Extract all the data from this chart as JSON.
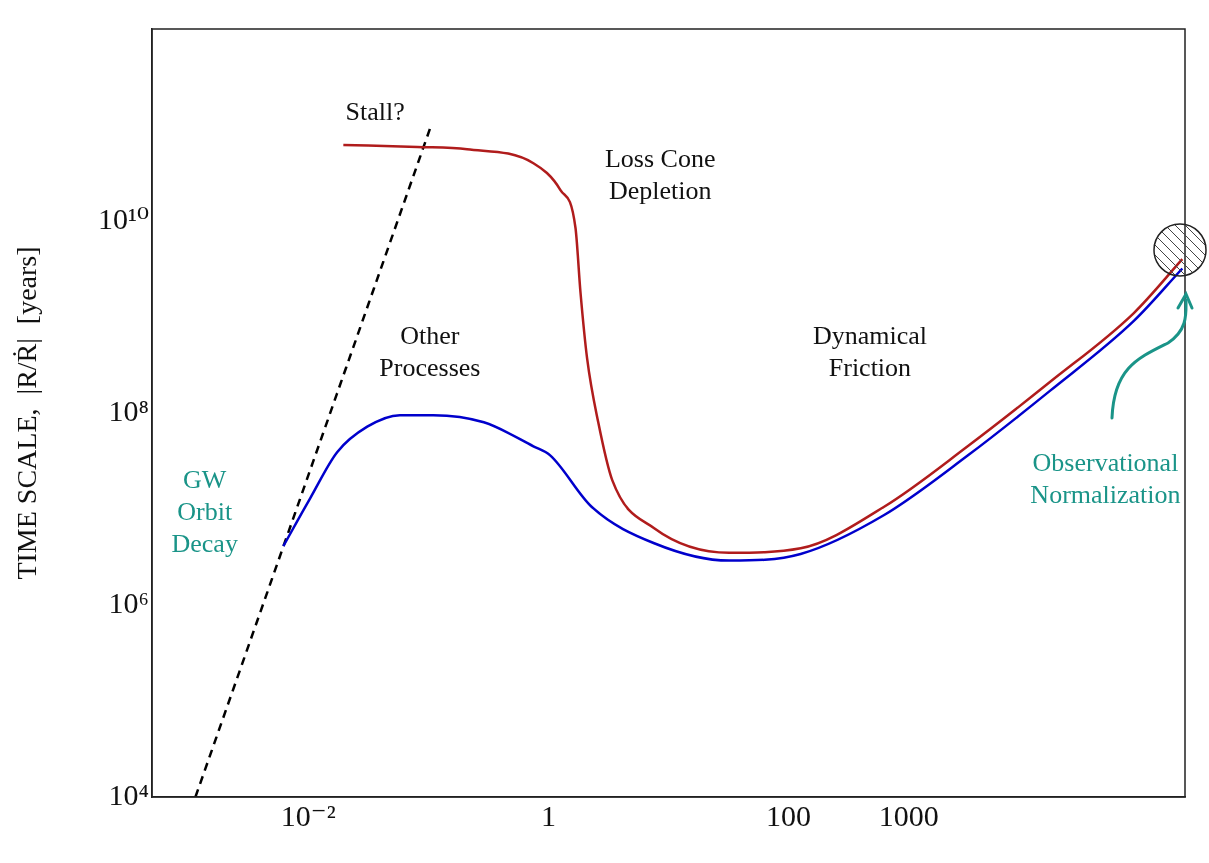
{
  "chart_data": {
    "type": "line",
    "ylabel": "TIME SCALE,  |R/Ṙ|  [years]",
    "log": "xy",
    "grid": false,
    "legend": false,
    "marker": "none",
    "xlim": [
      0.0005,
      200000
    ],
    "ylim": [
      10000,
      1000000000000
    ],
    "xticks": [
      {
        "value": 0.01,
        "label": "10⁻²"
      },
      1,
      100,
      1000
    ],
    "yticks": [
      {
        "value": 10000,
        "label": "10⁴"
      },
      {
        "value": 1000000,
        "label": "10⁶"
      },
      {
        "value": 100000000,
        "label": "10⁸"
      },
      {
        "value": 10000000000,
        "label": "10¹⁰"
      }
    ],
    "series": [
      {
        "color": "#b01c1c",
        "line_style": "solid",
        "x": [
          0.0196,
          0.081,
          0.21,
          0.75,
          1.26,
          1.68,
          1.85,
          2.1,
          2.6,
          3.4,
          7.6,
          32,
          126,
          620,
          3100,
          15000,
          75000,
          190000
        ],
        "values": [
          62000000000,
          59000000000,
          56000000000,
          40000000000,
          21000000000,
          8500000000,
          1800000000,
          370000000,
          80000000,
          20000000,
          6300000,
          3500000,
          3900000,
          10500000,
          45000000,
          210000000,
          1100000000,
          4000000000
        ]
      },
      {
        "color": "#0000cc",
        "line_style": "solid",
        "x": [
          0.0062,
          0.0104,
          0.0174,
          0.031,
          0.058,
          0.11,
          0.29,
          0.75,
          1.04,
          2.3,
          7.6,
          32,
          126,
          620,
          3100,
          15000,
          75000,
          190000
        ],
        "values": [
          4100000,
          13000000,
          39000000,
          72000000,
          95000000,
          95000000,
          80000000,
          45000000,
          36000000,
          10500000,
          4400000,
          2900000,
          3400000,
          8600000,
          36000000,
          170000000,
          910000000,
          3200000000
        ]
      },
      {
        "color": "#000000",
        "line_style": "dashed",
        "x": [
          0.00115,
          0.104
        ],
        "values": [
          10000,
          94000000000
        ]
      }
    ],
    "annotations": [
      "Stall?",
      "Loss Cone\nDepletion",
      "Other\nProcesses",
      "Dynamical\nFriction",
      "GW\nOrbit\nDecay",
      "Observational\nNormalization"
    ]
  }
}
